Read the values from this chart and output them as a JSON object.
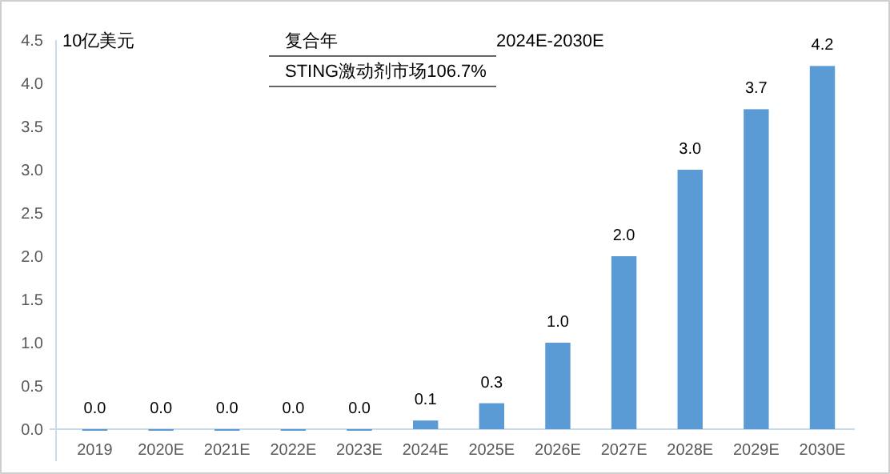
{
  "chart_data": {
    "type": "bar",
    "ylabel": "10亿美元",
    "annotations": [
      "复合年",
      "2024E-2030E",
      "STING激动剂市场106.7%"
    ],
    "categories": [
      "2019",
      "2020E",
      "2021E",
      "2022E",
      "2023E",
      "2024E",
      "2025E",
      "2026E",
      "2027E",
      "2028E",
      "2029E",
      "2030E"
    ],
    "values": [
      0.0,
      0.0,
      0.0,
      0.0,
      0.0,
      0.1,
      0.3,
      1.0,
      2.0,
      3.0,
      3.7,
      4.2
    ],
    "color": "#5b9bd5",
    "ylim": [
      0,
      4.5
    ],
    "yticks": [
      {
        "value": 0,
        "label": "0.0"
      },
      {
        "value": 0.5,
        "label": "0.5"
      },
      {
        "value": 1,
        "label": "1.0"
      },
      {
        "value": 1.5,
        "label": "1.5"
      },
      {
        "value": 2,
        "label": "2.0"
      },
      {
        "value": 2.5,
        "label": "2.5"
      },
      {
        "value": 3,
        "label": "3.0"
      },
      {
        "value": 3.5,
        "label": "3.5"
      },
      {
        "value": 4,
        "label": "4.0"
      },
      {
        "value": 4.5,
        "label": "4.5"
      }
    ],
    "value_labels": [
      "0.0",
      "0.0",
      "0.0",
      "0.0",
      "0.0",
      "0.1",
      "0.3",
      "1.0",
      "2.0",
      "3.0",
      "3.7",
      "4.2"
    ],
    "grid": false
  }
}
